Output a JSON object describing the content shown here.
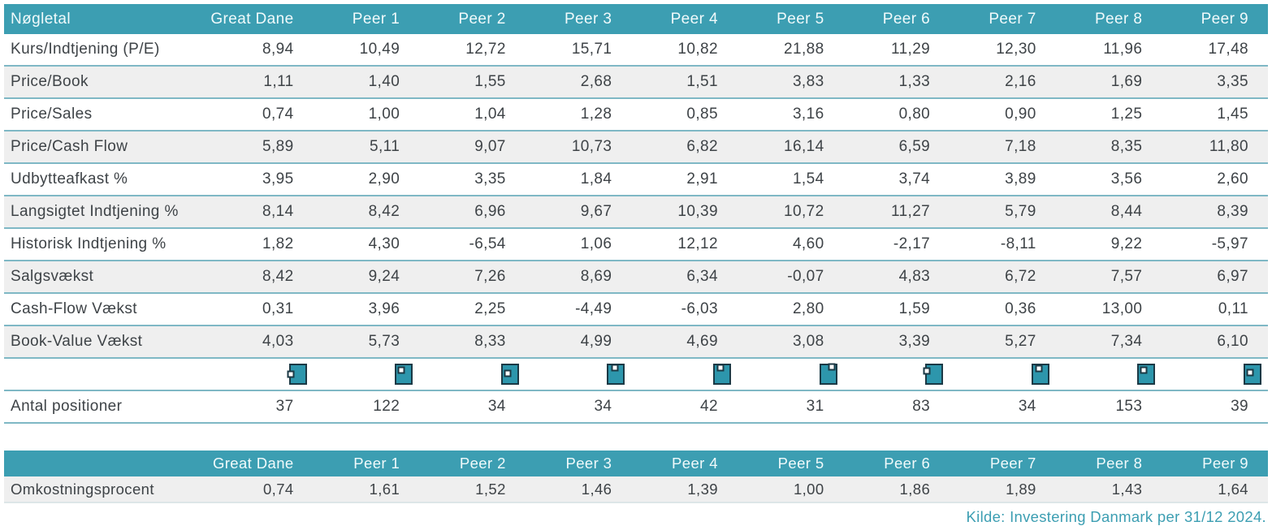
{
  "colors": {
    "header_teal": "#3C9EB2",
    "row_alt_gray": "#EFEFEF",
    "row_divider": "#7FB8C5",
    "text": "#3E4347",
    "icon_fill": "#2D96AC",
    "icon_border": "#1B3945",
    "source_text": "#3C9EB2"
  },
  "chart_data": {
    "type": "table",
    "tables": [
      {
        "name": "key_figures",
        "columns": [
          "Nøgletal",
          "Great Dane",
          "Peer 1",
          "Peer 2",
          "Peer 3",
          "Peer 4",
          "Peer 5",
          "Peer 6",
          "Peer 7",
          "Peer 8",
          "Peer 9"
        ],
        "rows": [
          {
            "label": "Kurs/Indtjening (P/E)",
            "values": [
              "8,94",
              "10,49",
              "12,72",
              "15,71",
              "10,82",
              "21,88",
              "11,29",
              "12,30",
              "11,96",
              "17,48"
            ]
          },
          {
            "label": "Price/Book",
            "values": [
              "1,11",
              "1,40",
              "1,55",
              "2,68",
              "1,51",
              "3,83",
              "1,33",
              "2,16",
              "1,69",
              "3,35"
            ]
          },
          {
            "label": "Price/Sales",
            "values": [
              "0,74",
              "1,00",
              "1,04",
              "1,28",
              "0,85",
              "3,16",
              "0,80",
              "0,90",
              "1,25",
              "1,45"
            ]
          },
          {
            "label": "Price/Cash Flow",
            "values": [
              "5,89",
              "5,11",
              "9,07",
              "10,73",
              "6,82",
              "16,14",
              "6,59",
              "7,18",
              "8,35",
              "11,80"
            ]
          },
          {
            "label": "Udbytteafkast %",
            "values": [
              "3,95",
              "2,90",
              "3,35",
              "1,84",
              "2,91",
              "1,54",
              "3,74",
              "3,89",
              "3,56",
              "2,60"
            ]
          },
          {
            "label": "Langsigtet Indtjening %",
            "values": [
              "8,14",
              "8,42",
              "6,96",
              "9,67",
              "10,39",
              "10,72",
              "11,27",
              "5,79",
              "8,44",
              "8,39"
            ]
          },
          {
            "label": "Historisk Indtjening %",
            "values": [
              "1,82",
              "4,30",
              "-6,54",
              "1,06",
              "12,12",
              "4,60",
              "-2,17",
              "-8,11",
              "9,22",
              "-5,97"
            ]
          },
          {
            "label": "Salgsvækst",
            "values": [
              "8,42",
              "9,24",
              "7,26",
              "8,69",
              "6,34",
              "-0,07",
              "4,83",
              "6,72",
              "7,57",
              "6,97"
            ]
          },
          {
            "label": "Cash-Flow Vækst",
            "values": [
              "0,31",
              "3,96",
              "2,25",
              "-4,49",
              "-6,03",
              "2,80",
              "1,59",
              "0,36",
              "13,00",
              "0,11"
            ]
          },
          {
            "label": "Book-Value Vækst",
            "values": [
              "4,03",
              "5,73",
              "8,33",
              "4,99",
              "4,69",
              "3,08",
              "3,39",
              "5,27",
              "7,34",
              "6,10"
            ]
          }
        ],
        "style_box_row": {
          "label": "",
          "markers": [
            {
              "column": "Great Dane",
              "x": 0,
              "y": 52
            },
            {
              "column": "Peer 1",
              "x": 30,
              "y": 26
            },
            {
              "column": "Peer 2",
              "x": 33,
              "y": 44
            },
            {
              "column": "Peer 3",
              "x": 45,
              "y": 12
            },
            {
              "column": "Peer 4",
              "x": 40,
              "y": 14
            },
            {
              "column": "Peer 5",
              "x": 72,
              "y": 8
            },
            {
              "column": "Peer 6",
              "x": 0,
              "y": 32
            },
            {
              "column": "Peer 7",
              "x": 38,
              "y": 20
            },
            {
              "column": "Peer 8",
              "x": 33,
              "y": 28
            },
            {
              "column": "Peer 9",
              "x": 32,
              "y": 42
            }
          ]
        },
        "count_row": {
          "label": "Antal positioner",
          "values": [
            "37",
            "122",
            "34",
            "34",
            "42",
            "31",
            "83",
            "34",
            "153",
            "39"
          ]
        }
      },
      {
        "name": "costs",
        "columns": [
          "",
          "Great Dane",
          "Peer 1",
          "Peer 2",
          "Peer 3",
          "Peer 4",
          "Peer 5",
          "Peer 6",
          "Peer 7",
          "Peer 8",
          "Peer 9"
        ],
        "rows": [
          {
            "label": "Omkostningsprocent",
            "values": [
              "0,74",
              "1,61",
              "1,52",
              "1,46",
              "1,39",
              "1,00",
              "1,86",
              "1,89",
              "1,43",
              "1,64"
            ]
          }
        ]
      }
    ],
    "source": "Kilde: Investering Danmark per 31/12 2024."
  }
}
